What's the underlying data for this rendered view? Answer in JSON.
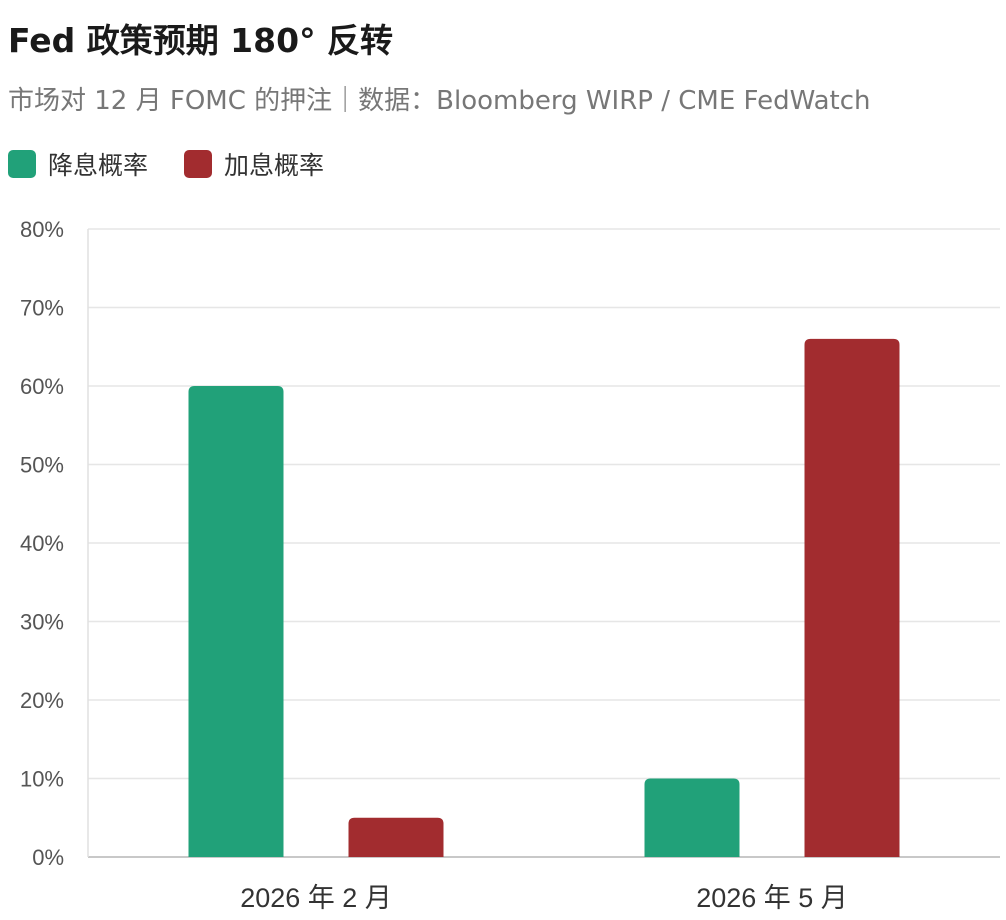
{
  "chart_data": {
    "type": "bar",
    "title": "Fed 政策预期 180° 反转",
    "subtitle": "市场对 12 月 FOMC 的押注｜数据：Bloomberg WIRP / CME FedWatch",
    "categories": [
      "2026 年 2 月",
      "2026 年 5 月"
    ],
    "series": [
      {
        "name": "降息概率",
        "color": "#21a179",
        "values": [
          60,
          10
        ]
      },
      {
        "name": "加息概率",
        "color": "#a22c2f",
        "values": [
          5,
          66
        ]
      }
    ],
    "ylim": [
      0,
      80
    ],
    "yticks": [
      0,
      10,
      20,
      30,
      40,
      50,
      60,
      70,
      80
    ],
    "ytick_labels": [
      "0%",
      "10%",
      "20%",
      "30%",
      "40%",
      "50%",
      "60%",
      "70%",
      "80%"
    ],
    "grid": true,
    "legend_position": "top-left",
    "xlabel": "",
    "ylabel": ""
  }
}
